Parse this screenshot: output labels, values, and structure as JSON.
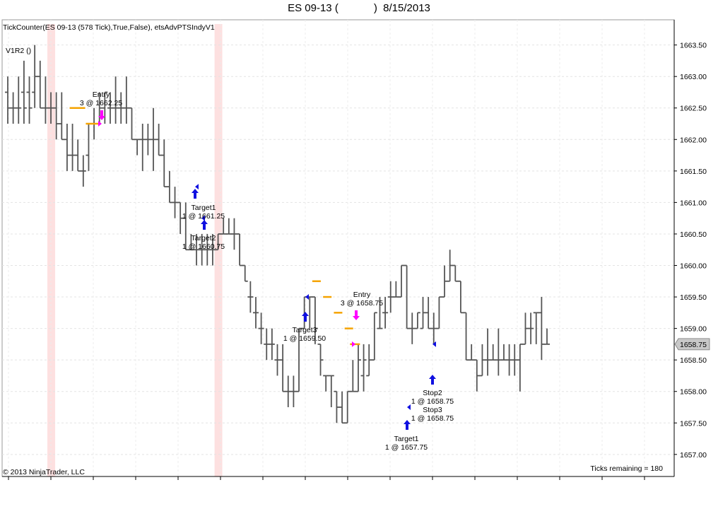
{
  "title": "ES 09-13 (            )  8/15/2013",
  "chart_data": {
    "type": "ohlc",
    "indicator_label": "TickCounter(ES 09-13 (578 Tick),True,False), etsAdvPTSIndyV1",
    "strategy_label": "V1R2 ()",
    "copyright": "© 2013 NinjaTrader, LLC",
    "ticks_remaining": "Ticks remaining = 180",
    "current_price_label": "1658.75",
    "ylim": [
      1656.65,
      1663.9
    ],
    "yticks": [
      "1663.50",
      "1663.00",
      "1662.50",
      "1662.00",
      "1661.50",
      "1661.00",
      "1660.50",
      "1660.00",
      "1659.50",
      "1659.00",
      "1658.50",
      "1658.00",
      "1657.50",
      "1657.00"
    ],
    "bars": [
      [
        1662.75,
        1663.0,
        1662.25,
        1662.5
      ],
      [
        1662.5,
        1662.75,
        1662.25,
        1662.5
      ],
      [
        1662.5,
        1663.0,
        1662.25,
        1662.5
      ],
      [
        1662.75,
        1663.25,
        1662.25,
        1662.5
      ],
      [
        1662.75,
        1663.0,
        1662.25,
        1662.5
      ],
      [
        1662.75,
        1663.5,
        1662.5,
        1663.0
      ],
      [
        1663.0,
        1663.25,
        1662.5,
        1662.5
      ],
      [
        1662.5,
        1663.0,
        1662.25,
        1662.5
      ],
      [
        1662.5,
        1662.75,
        1662.25,
        1662.5
      ],
      [
        1662.5,
        1662.75,
        1662.0,
        1662.25
      ],
      [
        1662.25,
        1662.75,
        1662.0,
        1662.0
      ],
      [
        1662.0,
        1662.25,
        1661.5,
        1661.75
      ],
      [
        1661.75,
        1662.25,
        1661.5,
        1661.75
      ],
      [
        1661.75,
        1662.0,
        1661.5,
        1661.5
      ],
      [
        1661.5,
        1661.75,
        1661.25,
        1661.5
      ],
      [
        1661.75,
        1662.25,
        1661.5,
        1662.25
      ],
      [
        1662.25,
        1662.5,
        1662.0,
        1662.25
      ],
      [
        1662.25,
        1662.75,
        1662.25,
        1662.5
      ],
      [
        1662.5,
        1662.75,
        1662.25,
        1662.75
      ],
      [
        1662.5,
        1662.75,
        1662.25,
        1662.5
      ],
      [
        1662.5,
        1663.0,
        1662.25,
        1662.5
      ],
      [
        1662.5,
        1662.75,
        1662.25,
        1662.5
      ],
      [
        1662.5,
        1663.0,
        1662.25,
        1662.5
      ],
      [
        1662.5,
        1662.5,
        1662.0,
        1662.0
      ],
      [
        1662.0,
        1662.0,
        1661.75,
        1662.0
      ],
      [
        1662.0,
        1662.25,
        1661.5,
        1662.0
      ],
      [
        1662.0,
        1662.25,
        1661.75,
        1662.0
      ],
      [
        1662.0,
        1662.5,
        1661.5,
        1662.0
      ],
      [
        1662.0,
        1662.25,
        1661.75,
        1661.75
      ],
      [
        1661.75,
        1662.0,
        1661.25,
        1661.25
      ],
      [
        1661.25,
        1661.5,
        1661.0,
        1661.0
      ],
      [
        1661.0,
        1661.25,
        1660.75,
        1661.0
      ],
      [
        1661.0,
        1661.0,
        1660.5,
        1660.75
      ],
      [
        1660.75,
        1661.0,
        1660.25,
        1660.25
      ],
      [
        1660.25,
        1660.5,
        1660.25,
        1660.25
      ],
      [
        1660.25,
        1660.5,
        1660.0,
        1660.25
      ],
      [
        1660.25,
        1660.5,
        1660.0,
        1660.25
      ],
      [
        1660.25,
        1660.5,
        1660.0,
        1660.25
      ],
      [
        1660.25,
        1660.5,
        1660.0,
        1660.25
      ],
      [
        1660.25,
        1660.5,
        1660.25,
        1660.5
      ],
      [
        1660.5,
        1660.75,
        1660.5,
        1660.5
      ],
      [
        1660.5,
        1660.75,
        1660.5,
        1660.5
      ],
      [
        1660.5,
        1660.75,
        1660.25,
        1660.5
      ],
      [
        1660.5,
        1660.5,
        1660.0,
        1660.0
      ],
      [
        1660.0,
        1660.0,
        1659.75,
        1659.75
      ],
      [
        1659.5,
        1659.75,
        1659.25,
        1659.5
      ],
      [
        1659.25,
        1659.5,
        1659.0,
        1659.25
      ],
      [
        1659.0,
        1659.25,
        1658.75,
        1659.0
      ],
      [
        1658.75,
        1659.0,
        1658.5,
        1658.75
      ],
      [
        1658.75,
        1659.0,
        1658.5,
        1658.75
      ],
      [
        1658.5,
        1658.75,
        1658.25,
        1658.5
      ],
      [
        1658.5,
        1658.75,
        1658.0,
        1658.0
      ],
      [
        1658.0,
        1658.25,
        1657.75,
        1658.0
      ],
      [
        1658.0,
        1658.25,
        1657.75,
        1658.0
      ],
      [
        1658.0,
        1659.0,
        1658.0,
        1659.0
      ],
      [
        1659.0,
        1659.5,
        1659.0,
        1659.5
      ],
      [
        1659.5,
        1659.5,
        1659.0,
        1659.5
      ],
      [
        1659.5,
        1659.5,
        1658.75,
        1659.0
      ],
      [
        1658.75,
        1658.75,
        1658.25,
        1658.5
      ],
      [
        1658.25,
        1658.25,
        1658.0,
        1658.25
      ],
      [
        1658.25,
        1658.25,
        1657.75,
        1658.25
      ],
      [
        1658.0,
        1658.0,
        1657.5,
        1657.75
      ],
      [
        1657.75,
        1658.0,
        1657.5,
        1657.5
      ],
      [
        1657.5,
        1658.0,
        1657.5,
        1658.0
      ],
      [
        1658.0,
        1658.5,
        1658.0,
        1658.0
      ],
      [
        1658.0,
        1658.75,
        1658.0,
        1658.5
      ],
      [
        1658.25,
        1658.75,
        1658.0,
        1658.5
      ],
      [
        1658.25,
        1658.75,
        1658.25,
        1658.5
      ],
      [
        1658.5,
        1659.25,
        1658.5,
        1659.25
      ],
      [
        1659.0,
        1659.5,
        1659.0,
        1659.0
      ],
      [
        1659.25,
        1659.5,
        1659.0,
        1659.25
      ],
      [
        1659.5,
        1659.75,
        1659.25,
        1659.5
      ],
      [
        1659.5,
        1659.75,
        1659.5,
        1659.5
      ],
      [
        1659.5,
        1660.0,
        1659.5,
        1660.0
      ],
      [
        1660.0,
        1660.0,
        1659.0,
        1659.0
      ],
      [
        1659.0,
        1659.25,
        1658.75,
        1659.0
      ],
      [
        1659.0,
        1659.25,
        1659.0,
        1659.25
      ],
      [
        1659.0,
        1659.5,
        1659.0,
        1659.25
      ],
      [
        1659.25,
        1659.5,
        1659.0,
        1659.0
      ],
      [
        1659.0,
        1659.25,
        1658.75,
        1659.0
      ],
      [
        1659.0,
        1659.5,
        1659.0,
        1659.5
      ],
      [
        1659.5,
        1660.0,
        1659.5,
        1659.75
      ],
      [
        1659.75,
        1660.25,
        1659.75,
        1660.0
      ],
      [
        1660.0,
        1660.0,
        1659.75,
        1659.75
      ],
      [
        1659.75,
        1659.75,
        1659.25,
        1659.25
      ],
      [
        1659.25,
        1659.25,
        1658.5,
        1658.5
      ],
      [
        1658.5,
        1658.75,
        1658.5,
        1658.5
      ],
      [
        1658.5,
        1658.5,
        1658.0,
        1658.25
      ],
      [
        1658.25,
        1658.75,
        1658.25,
        1658.5
      ],
      [
        1658.5,
        1659.0,
        1658.25,
        1658.5
      ],
      [
        1658.5,
        1658.75,
        1658.5,
        1658.5
      ],
      [
        1658.5,
        1659.0,
        1658.25,
        1658.5
      ],
      [
        1658.5,
        1658.75,
        1658.5,
        1658.5
      ],
      [
        1658.5,
        1658.75,
        1658.25,
        1658.5
      ],
      [
        1658.5,
        1658.75,
        1658.25,
        1658.5
      ],
      [
        1658.5,
        1658.75,
        1658.0,
        1658.75
      ],
      [
        1658.75,
        1659.25,
        1658.75,
        1659.0
      ],
      [
        1659.0,
        1659.25,
        1658.75,
        1659.0
      ],
      [
        1659.25,
        1659.25,
        1658.75,
        1659.25
      ],
      [
        1659.25,
        1659.5,
        1658.5,
        1658.75
      ],
      [
        1658.75,
        1659.0,
        1658.75,
        1658.75
      ]
    ],
    "highlight_bars": [
      8,
      39
    ],
    "annotations": [
      {
        "lines": [
          "Entry",
          "3 @ 1662.25"
        ],
        "bar": 11,
        "price": 1662.25
      },
      {
        "lines": [
          "Target1",
          "1 @ 1661.25"
        ],
        "bar": 23,
        "price": 1661.25
      },
      {
        "lines": [
          "Target2",
          "1 @ 1660.75"
        ],
        "bar": 24,
        "price": 1660.75
      },
      {
        "lines": [
          "Entry",
          "3 @ 1658.75"
        ],
        "bar": 44,
        "price": 1658.75
      },
      {
        "lines": [
          "Target3",
          "1 @ 1659.50"
        ],
        "bar": 37,
        "price": 1659.5
      },
      {
        "lines": [
          "Stop2",
          "1 @ 1658.75"
        ],
        "bar": 55,
        "price": 1658.75
      },
      {
        "lines": [
          "Stop3",
          "1 @ 1658.75"
        ],
        "bar": 55,
        "price": 1658.75
      },
      {
        "lines": [
          "Target1",
          "1 @ 1657.75"
        ],
        "bar": 51,
        "price": 1657.75
      }
    ],
    "colors": {
      "bar": "#555555",
      "highlight": "#fde0e0",
      "entry_level": "#f5a300",
      "buy_arrow": "#1010e0",
      "sell_arrow": "#ff00ff",
      "price_box": "#c8c8c8"
    }
  }
}
